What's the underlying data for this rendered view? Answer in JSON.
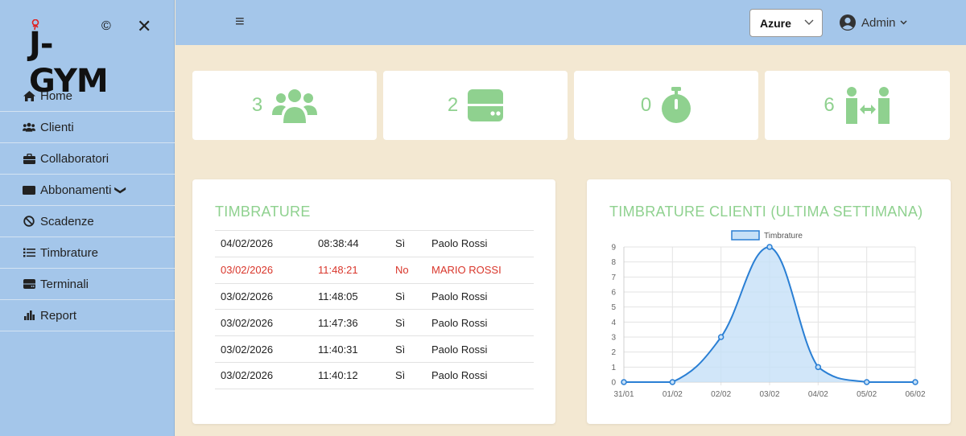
{
  "sidebar": {
    "logo_text": "J-GYM",
    "logo_mark": "©",
    "close_glyph": "✕",
    "items": [
      {
        "label": "Home",
        "icon": "home-icon"
      },
      {
        "label": "Clienti",
        "icon": "users-icon"
      },
      {
        "label": "Collaboratori",
        "icon": "briefcase-icon"
      },
      {
        "label": "Abbonamenti",
        "icon": "card-icon",
        "chevron": "❯"
      },
      {
        "label": "Scadenze",
        "icon": "ban-icon"
      },
      {
        "label": "Timbrature",
        "icon": "list-icon"
      },
      {
        "label": "Terminali",
        "icon": "terminal-icon"
      },
      {
        "label": "Report",
        "icon": "chart-icon"
      }
    ]
  },
  "topbar": {
    "menu_glyph": "≡",
    "theme_value": "Azure",
    "user_label": "Admin"
  },
  "stats": [
    {
      "value": "3",
      "icon": "users-icon"
    },
    {
      "value": "2",
      "icon": "server-icon"
    },
    {
      "value": "0",
      "icon": "stopwatch-icon"
    },
    {
      "value": "6",
      "icon": "people-arrows-icon"
    }
  ],
  "timbrature": {
    "title": "TIMBRATURE",
    "rows": [
      {
        "date": "04/02/2026",
        "time": "08:38:44",
        "ok": "Sì",
        "name": "Paolo Rossi",
        "error": false
      },
      {
        "date": "03/02/2026",
        "time": "11:48:21",
        "ok": "No",
        "name": "MARIO ROSSI",
        "error": true
      },
      {
        "date": "03/02/2026",
        "time": "11:48:05",
        "ok": "Sì",
        "name": "Paolo Rossi",
        "error": false
      },
      {
        "date": "03/02/2026",
        "time": "11:47:36",
        "ok": "Sì",
        "name": "Paolo Rossi",
        "error": false
      },
      {
        "date": "03/02/2026",
        "time": "11:40:31",
        "ok": "Sì",
        "name": "Paolo Rossi",
        "error": false
      },
      {
        "date": "03/02/2026",
        "time": "11:40:12",
        "ok": "Sì",
        "name": "Paolo Rossi",
        "error": false
      }
    ]
  },
  "chart_panel": {
    "title": "TIMBRATURE CLIENTI (ULTIMA SETTIMANA)"
  },
  "chart_data": {
    "type": "line",
    "categories": [
      "31/01",
      "01/02",
      "02/02",
      "03/02",
      "04/02",
      "05/02",
      "06/02"
    ],
    "series": [
      {
        "name": "Timbrature",
        "values": [
          0,
          0,
          3,
          9,
          1,
          0,
          0
        ]
      }
    ],
    "ylim": [
      0,
      9
    ],
    "yticks": [
      0,
      1,
      2,
      3,
      4,
      5,
      6,
      7,
      8,
      9
    ],
    "grid": true,
    "legend": "top",
    "fill": true,
    "line_color": "#2a7fd4",
    "fill_color": "#c6e0f7"
  },
  "colors": {
    "sidebar": "#a4c6ea",
    "background": "#f3e8d2",
    "accent_green": "#8fd18f",
    "error_red": "#d9362b"
  }
}
